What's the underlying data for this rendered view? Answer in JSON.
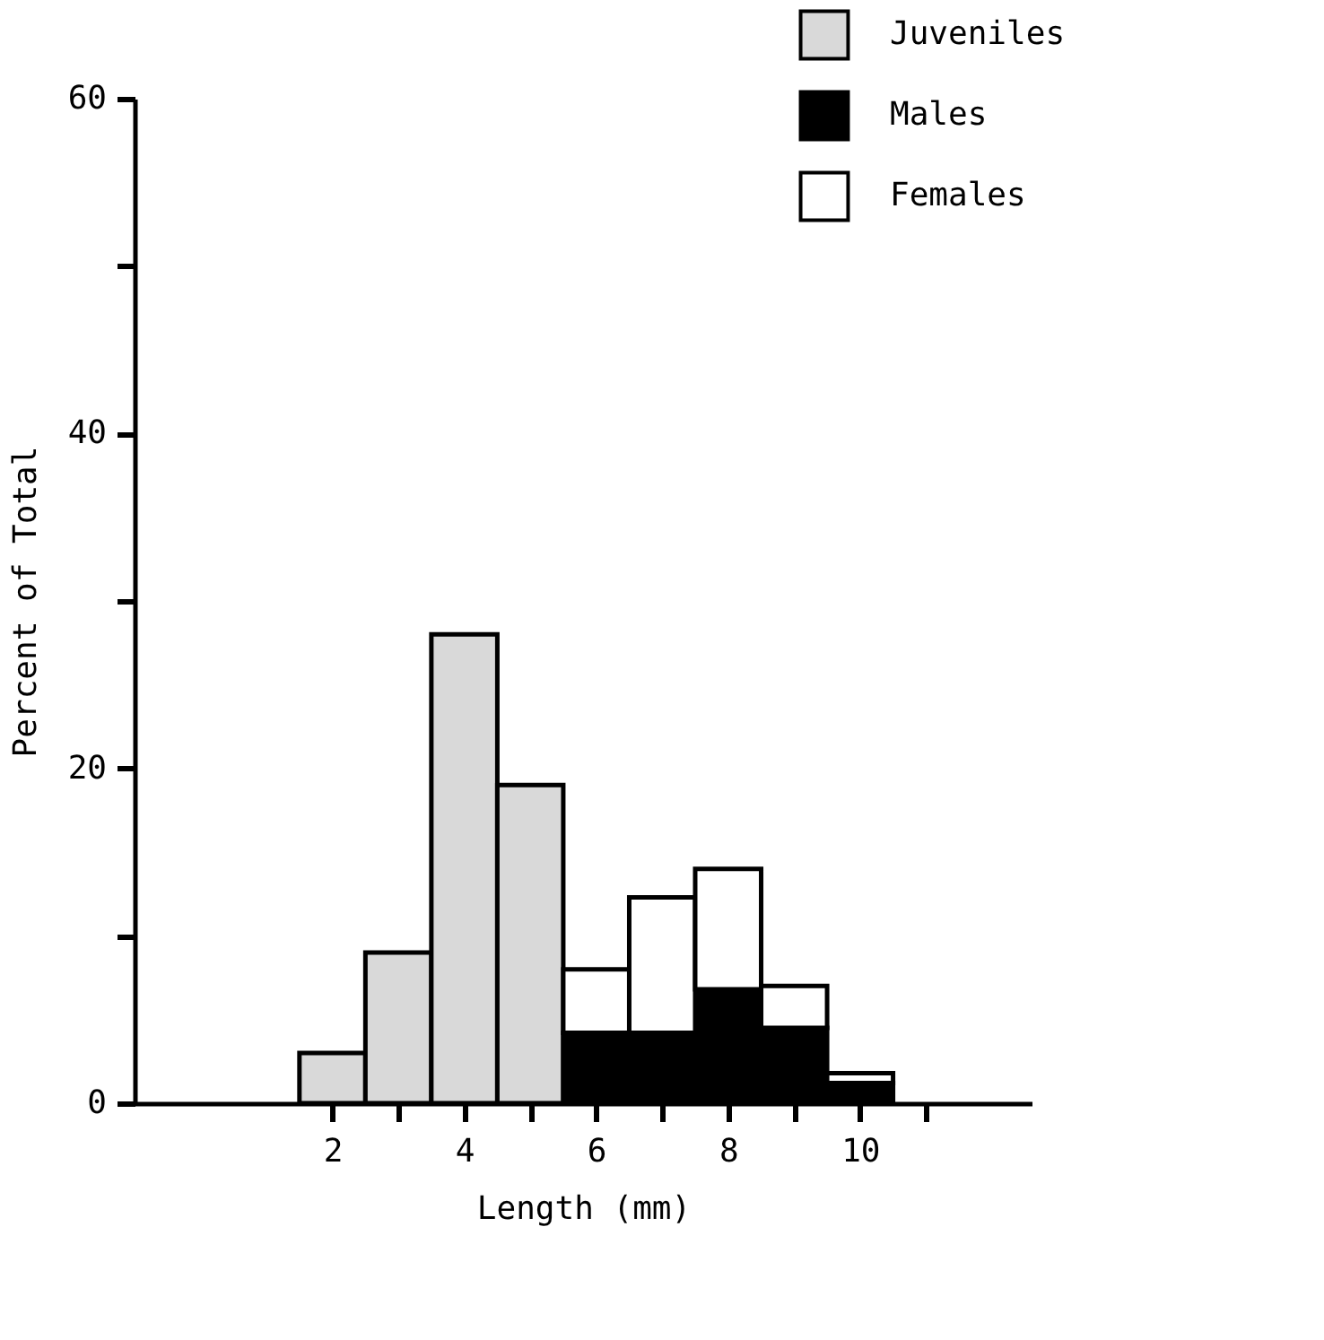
{
  "chart_data": {
    "type": "bar",
    "xlabel": "Length (mm)",
    "ylabel": "Percent of Total",
    "x": [
      2,
      3,
      4,
      5,
      6,
      7,
      8,
      9,
      10
    ],
    "stacked": true,
    "series": [
      {
        "name": "Juveniles",
        "color": "#d9d9d9",
        "values": [
          3,
          9,
          28,
          19,
          null,
          null,
          null,
          null,
          null
        ]
      },
      {
        "name": "Males",
        "color": "#000000",
        "values": [
          null,
          null,
          null,
          null,
          4.2,
          4.2,
          6.8,
          4.5,
          1.2
        ]
      },
      {
        "name": "Females",
        "color": "#ffffff",
        "values": [
          null,
          null,
          null,
          null,
          3.8,
          8.1,
          7.2,
          2.5,
          0.6
        ]
      }
    ],
    "xlim": [
      -1,
      12.6
    ],
    "xticks": [
      2,
      {
        "value": 3,
        "label": null
      },
      4,
      {
        "value": 5,
        "label": null
      },
      6,
      {
        "value": 7,
        "label": null
      },
      8,
      {
        "value": 9,
        "label": null
      },
      10,
      {
        "value": 11,
        "label": null
      }
    ],
    "ylim": [
      0,
      60
    ],
    "yticks": [
      0,
      {
        "value": 10,
        "label": null
      },
      20,
      {
        "value": 30,
        "label": null
      },
      40,
      {
        "value": 50,
        "label": null
      },
      60
    ],
    "legend": "top right",
    "grid": false
  }
}
